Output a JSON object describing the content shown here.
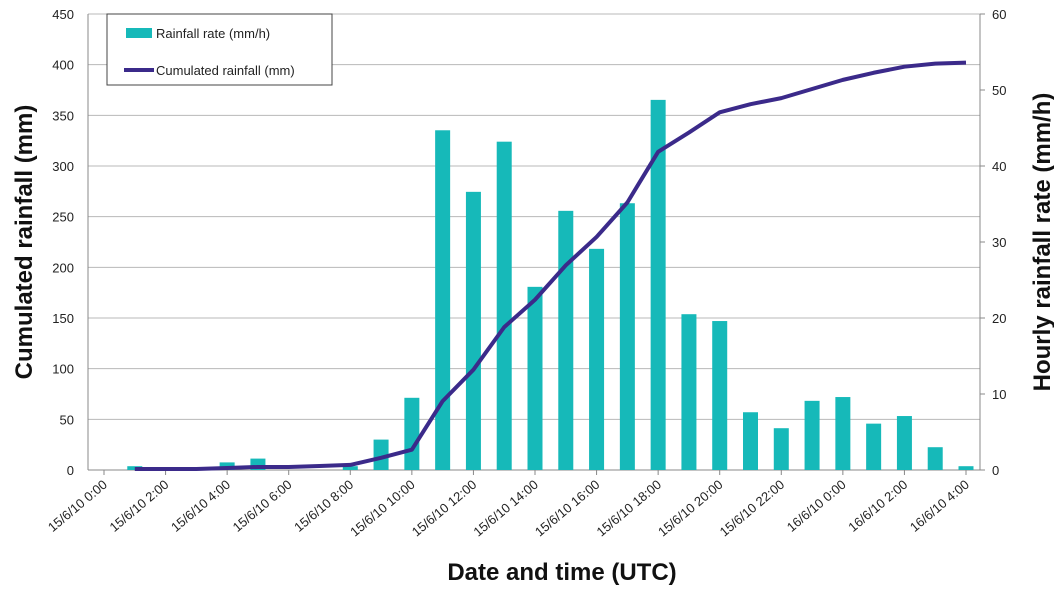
{
  "chart_data": {
    "type": "bar",
    "x_label": "Date and time (UTC)",
    "y_label": "Cumulated rainfall (mm)",
    "y2_label": "Hourly rainfall rate (mm/h)",
    "categories": [
      "15/6/10 0:00",
      null,
      "15/6/10 2:00",
      null,
      "15/6/10 4:00",
      null,
      "15/6/10 6:00",
      null,
      "15/6/10 8:00",
      null,
      "15/6/10 10:00",
      null,
      "15/6/10 12:00",
      null,
      "15/6/10 14:00",
      null,
      "15/6/10 16:00",
      null,
      "15/6/10 18:00",
      null,
      "15/6/10 20:00",
      null,
      "15/6/10 22:00",
      null,
      "16/6/10 0:00",
      null,
      "16/6/10 2:00",
      null,
      "16/6/10 4:00"
    ],
    "series": [
      {
        "name": "Rainfall rate (mm/h)",
        "type": "bar",
        "axis": "y2",
        "color": "#16b9b9",
        "values": [
          0,
          0.5,
          0,
          0,
          1,
          1.5,
          0,
          0,
          0.5,
          4,
          9.5,
          44.7,
          36.6,
          43.2,
          24.1,
          34.1,
          29.1,
          35.1,
          48.7,
          20.5,
          19.6,
          7.6,
          5.5,
          9.1,
          9.6,
          6.1,
          7.1,
          3,
          0.5
        ]
      },
      {
        "name": "Cumulated rainfall (mm)",
        "type": "line",
        "color": "#3b2a8a",
        "values": [
          null,
          1,
          1,
          1,
          2,
          3,
          3,
          4,
          5,
          12,
          20,
          68,
          99,
          141,
          168,
          202,
          230,
          264,
          314,
          333,
          353,
          361,
          367,
          376,
          385,
          392,
          398,
          401,
          402
        ]
      }
    ],
    "ylim": [
      0,
      450
    ],
    "yticks": [
      0,
      50,
      100,
      150,
      200,
      250,
      300,
      350,
      400,
      450
    ],
    "y2lim": [
      0,
      60
    ],
    "y2ticks": [
      0,
      10,
      20,
      30,
      40,
      50,
      60
    ],
    "grid": true,
    "legend": "upper left"
  }
}
